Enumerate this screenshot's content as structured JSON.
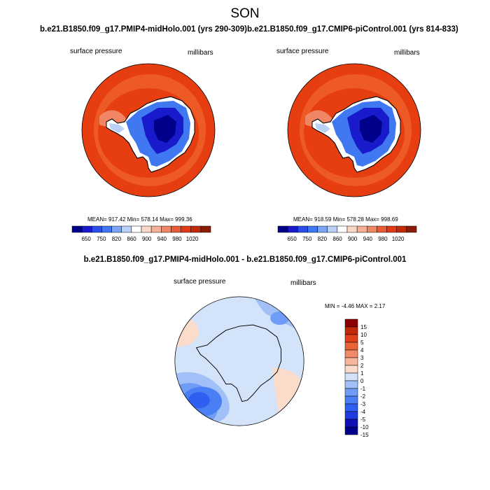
{
  "title": "SON",
  "case_a": "b.e21.B1850.f09_g17.PMIP4-midHolo.001 (yrs 290-309)",
  "case_b": "b.e21.B1850.f09_g17.CMIP6-piControl.001 (yrs 814-833)",
  "diff_title": "b.e21.B1850.f09_g17.PMIP4-midHolo.001 - b.e21.B1850.f09_g17.CMIP6-piControl.001",
  "colors": {
    "abs_scale": [
      "#00008b",
      "#1a1acd",
      "#2b4de8",
      "#3f78f0",
      "#7aa5f5",
      "#b9d0f7",
      "#ffffff",
      "#f9d8c8",
      "#f5b097",
      "#f08663",
      "#ea5a34",
      "#e23a14",
      "#c22a0a",
      "#8b1c05"
    ],
    "diff_scale": [
      "#00008b",
      "#1010b8",
      "#1e3ae0",
      "#2f5ff0",
      "#4a7ef5",
      "#6e9cf7",
      "#a1c0f8",
      "#d3e3fa",
      "#fbdccb",
      "#f7b59a",
      "#f18a67",
      "#ea6237",
      "#e0401b",
      "#c02808",
      "#8b0000"
    ],
    "ocean_orange": "#ee5a24",
    "ring_orange": "#e63e10"
  },
  "panels": [
    {
      "field_label": "surface pressure",
      "units_label": "millibars",
      "stats_text": "MEAN= 917.42  Min= 578.14  Max= 999.36"
    },
    {
      "field_label": "surface pressure",
      "units_label": "millibars",
      "stats_text": "MEAN= 918.59  Min= 578.28  Max= 998.69"
    }
  ],
  "diff_panel": {
    "field_label": "surface pressure",
    "units_label": "millibars",
    "stats_text": "MIN =  -4.46 MAX =   2.17"
  },
  "chart_data": [
    {
      "type": "heatmap",
      "title": "surface pressure",
      "units": "millibars",
      "case": "b.e21.B1850.f09_g17.PMIP4-midHolo.001 (yrs 290-309)",
      "mean": 917.42,
      "min": 578.14,
      "max": 999.36,
      "colorbar_ticks": [
        650,
        750,
        820,
        860,
        900,
        940,
        980,
        1020
      ]
    },
    {
      "type": "heatmap",
      "title": "surface pressure",
      "units": "millibars",
      "case": "b.e21.B1850.f09_g17.CMIP6-piControl.001 (yrs 814-833)",
      "mean": 918.59,
      "min": 578.28,
      "max": 998.69,
      "colorbar_ticks": [
        650,
        750,
        820,
        860,
        900,
        940,
        980,
        1020
      ]
    },
    {
      "type": "heatmap",
      "title": "surface pressure",
      "units": "millibars",
      "min": -4.46,
      "max": 2.17,
      "colorbar_ticks": [
        15,
        10,
        5,
        4,
        3,
        2,
        1,
        0,
        -1,
        -2,
        -3,
        -4,
        -5,
        -10,
        -15
      ]
    }
  ]
}
